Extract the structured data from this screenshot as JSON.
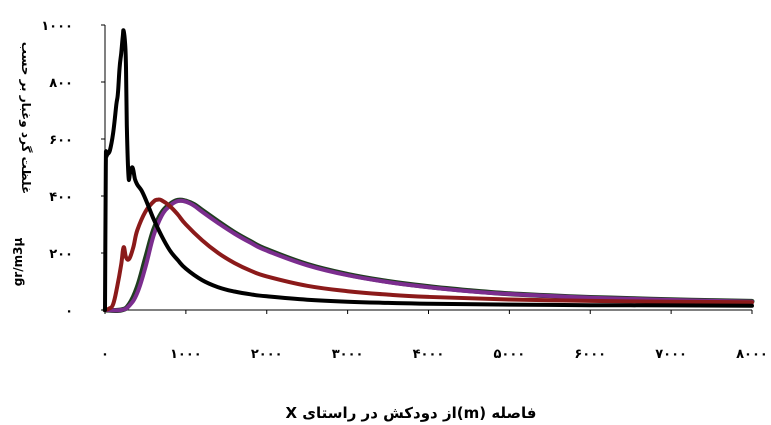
{
  "chart_data": {
    "type": "line",
    "xlabel": "فاصله (m)از دودکش در راستای X",
    "ylabel_line1": "غلظت گرد وغبار بر حسب",
    "ylabel_line2": "gr/m3µ",
    "xlim": [
      0,
      8000
    ],
    "ylim": [
      0,
      1000
    ],
    "x_ticks": [
      0,
      1000,
      2000,
      3000,
      4000,
      5000,
      6000,
      7000,
      8000
    ],
    "x_tick_labels": [
      "۰",
      "۱۰۰۰",
      "۲۰۰۰",
      "۳۰۰۰",
      "۴۰۰۰",
      "۵۰۰۰",
      "۶۰۰۰",
      "۷۰۰۰",
      "۸۰۰۰"
    ],
    "y_ticks": [
      0,
      200,
      400,
      600,
      800,
      1000
    ],
    "y_tick_labels": [
      "۰",
      "۲۰۰",
      "۴۰۰",
      "۶۰۰",
      "۸۰۰",
      "۱۰۰۰"
    ],
    "grid": false,
    "legend": "none",
    "series": [
      {
        "color": "#1f3d1f",
        "x": [
          0,
          200,
          300,
          400,
          500,
          600,
          700,
          800,
          900,
          1000,
          1100,
          1200,
          1400,
          1600,
          1800,
          2000,
          2500,
          3000,
          3500,
          4000,
          4500,
          5000,
          5500,
          6000,
          6500,
          7000,
          7500,
          8000
        ],
        "y": [
          0,
          0,
          20,
          80,
          180,
          280,
          340,
          370,
          385,
          382,
          370,
          350,
          310,
          272,
          240,
          212,
          160,
          125,
          100,
          82,
          68,
          57,
          50,
          44,
          40,
          36,
          33,
          30
        ]
      },
      {
        "color": "#7b2d8e",
        "x": [
          0,
          200,
          300,
          400,
          500,
          600,
          700,
          800,
          900,
          1000,
          1100,
          1200,
          1400,
          1600,
          1800,
          2000,
          2500,
          3000,
          3500,
          4000,
          4500,
          5000,
          5500,
          6000,
          6500,
          7000,
          7500,
          8000
        ],
        "y": [
          0,
          0,
          15,
          60,
          150,
          260,
          330,
          365,
          382,
          380,
          366,
          345,
          305,
          268,
          236,
          208,
          157,
          122,
          98,
          80,
          66,
          56,
          49,
          43,
          39,
          35,
          32,
          29
        ]
      },
      {
        "color": "#8b1a1a",
        "x": [
          0,
          50,
          100,
          150,
          200,
          230,
          260,
          300,
          350,
          400,
          500,
          600,
          650,
          700,
          800,
          900,
          1000,
          1200,
          1400,
          1600,
          1800,
          2000,
          2500,
          3000,
          3500,
          4000,
          5000,
          6000,
          7000,
          8000
        ],
        "y": [
          0,
          5,
          20,
          80,
          160,
          220,
          185,
          180,
          220,
          280,
          345,
          380,
          387,
          385,
          365,
          335,
          300,
          245,
          200,
          165,
          138,
          118,
          85,
          66,
          54,
          46,
          37,
          32,
          29,
          27
        ]
      },
      {
        "color": "#000000",
        "x": [
          0,
          10,
          20,
          60,
          100,
          140,
          160,
          180,
          200,
          220,
          230,
          250,
          260,
          270,
          290,
          310,
          340,
          370,
          400,
          450,
          500,
          600,
          700,
          800,
          900,
          1000,
          1200,
          1400,
          1600,
          1800,
          2000,
          2500,
          3000,
          3500,
          4000,
          5000,
          6000,
          7000,
          8000
        ],
        "y": [
          0,
          500,
          540,
          560,
          620,
          720,
          760,
          850,
          900,
          960,
          980,
          930,
          850,
          650,
          470,
          480,
          500,
          460,
          440,
          420,
          390,
          320,
          260,
          210,
          175,
          145,
          105,
          80,
          65,
          55,
          48,
          36,
          29,
          25,
          22,
          19,
          17,
          16,
          15
        ]
      }
    ]
  }
}
